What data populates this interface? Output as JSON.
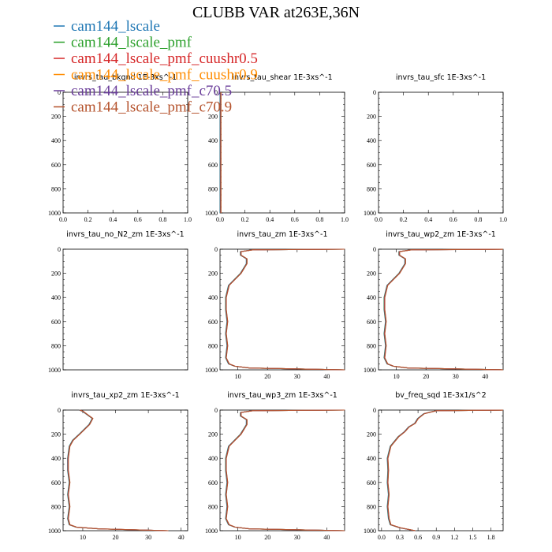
{
  "title": "CLUBB VAR at263E,36N",
  "colors": {
    "cam144_lscale": "#1f77b4",
    "cam144_lscale_pmf": "#2ca02c",
    "cam144_lscale_pmf_cuushr0.5": "#d62728",
    "cam144_lscale_pmf_cuushr0.9": "#ff8c00",
    "cam144_lscale_pmf_c70.5": "#6a3d9a",
    "cam144_lscale_pmf_c70.9": "#b5532d"
  },
  "legend": [
    "cam144_lscale",
    "cam144_lscale_pmf",
    "cam144_lscale_pmf_cuushr0.5",
    "cam144_lscale_pmf_cuushr0.9",
    "cam144_lscale_pmf_c70.5",
    "cam144_lscale_pmf_c70.9"
  ],
  "chart_data": [
    {
      "type": "line",
      "title": "invrs_tau_bkgnd 1E-3xs^-1",
      "xlim": [
        0,
        1
      ],
      "ylim": [
        1000,
        0
      ],
      "xticks": [
        "0.0",
        "0.2",
        "0.4",
        "0.6",
        "0.8",
        "1.0"
      ],
      "yticks": [
        "0",
        "200",
        "400",
        "600",
        "800",
        "1000"
      ],
      "profile": null
    },
    {
      "type": "line",
      "title": "invrs_tau_shear 1E-3xs^-1",
      "xlim": [
        0,
        1
      ],
      "ylim": [
        1000,
        0
      ],
      "xticks": [
        "0.0",
        "0.2",
        "0.4",
        "0.6",
        "0.8",
        "1.0"
      ],
      "yticks": [
        "0",
        "200",
        "400",
        "600",
        "800",
        "1000"
      ],
      "profile": {
        "x": [
          0.005,
          0.005
        ],
        "y": [
          0,
          1000
        ]
      }
    },
    {
      "type": "line",
      "title": "invrs_tau_sfc 1E-3xs^-1",
      "xlim": [
        0,
        1
      ],
      "ylim": [
        1000,
        0
      ],
      "xticks": [
        "0.0",
        "0.2",
        "0.4",
        "0.6",
        "0.8",
        "1.0"
      ],
      "yticks": [
        "0",
        "200",
        "400",
        "600",
        "800",
        "1000"
      ],
      "profile": null
    },
    {
      "type": "line",
      "title": "invrs_tau_no_N2_zm 1E-3xs^-1",
      "xlim": [
        0,
        1
      ],
      "ylim": [
        1000,
        0
      ],
      "xticks": [],
      "yticks": [
        "0",
        "200",
        "400",
        "600",
        "800",
        "1000"
      ],
      "profile": null
    },
    {
      "type": "line",
      "title": "invrs_tau_zm 1E-3xs^-1",
      "xlim": [
        4,
        46
      ],
      "ylim": [
        1000,
        0
      ],
      "xticks": [
        "10",
        "20",
        "30",
        "40"
      ],
      "yticks": [
        "0",
        "200",
        "400",
        "600",
        "800",
        "1000"
      ],
      "profile": {
        "x": [
          46,
          15,
          11,
          11,
          13,
          13,
          11,
          9,
          7,
          6,
          6,
          6.5,
          6,
          6.5,
          6,
          7,
          9,
          14,
          46
        ],
        "y": [
          0,
          5,
          20,
          50,
          80,
          120,
          200,
          250,
          300,
          400,
          500,
          600,
          700,
          800,
          900,
          950,
          970,
          985,
          1000
        ]
      }
    },
    {
      "type": "line",
      "title": "invrs_tau_wp2_zm 1E-3xs^-1",
      "xlim": [
        4,
        46
      ],
      "ylim": [
        1000,
        0
      ],
      "xticks": [
        "10",
        "20",
        "30",
        "40"
      ],
      "yticks": [
        "0",
        "200",
        "400",
        "600",
        "800",
        "1000"
      ],
      "profile": {
        "x": [
          46,
          15,
          11,
          11,
          13,
          13,
          11,
          9,
          7,
          6,
          6,
          6.5,
          6,
          6.5,
          6,
          7,
          9,
          14,
          46
        ],
        "y": [
          0,
          5,
          20,
          50,
          80,
          120,
          200,
          250,
          300,
          400,
          500,
          600,
          700,
          800,
          900,
          950,
          970,
          985,
          1000
        ]
      }
    },
    {
      "type": "line",
      "title": "invrs_tau_xp2_zm 1E-3xs^-1",
      "xlim": [
        4,
        42
      ],
      "ylim": [
        1000,
        0
      ],
      "xticks": [
        "10",
        "20",
        "30",
        "40"
      ],
      "yticks": [
        "0",
        "200",
        "400",
        "600",
        "800",
        "1000"
      ],
      "profile": {
        "x": [
          9,
          10,
          11,
          13,
          12,
          9,
          7,
          6,
          5.5,
          5.5,
          6,
          5.5,
          6,
          5.5,
          6,
          8,
          15,
          36
        ],
        "y": [
          0,
          10,
          30,
          70,
          120,
          200,
          250,
          300,
          400,
          500,
          600,
          700,
          800,
          900,
          950,
          970,
          985,
          1000
        ]
      }
    },
    {
      "type": "line",
      "title": "invrs_tau_wp3_zm 1E-3xs^-1",
      "xlim": [
        4,
        46
      ],
      "ylim": [
        1000,
        0
      ],
      "xticks": [
        "10",
        "20",
        "30",
        "40"
      ],
      "yticks": [
        "0",
        "200",
        "400",
        "600",
        "800",
        "1000"
      ],
      "profile": {
        "x": [
          46,
          15,
          11,
          11,
          13,
          13,
          11,
          9,
          7,
          6,
          6,
          6.5,
          6,
          6.5,
          6,
          7,
          9,
          14,
          46
        ],
        "y": [
          0,
          5,
          20,
          50,
          80,
          120,
          200,
          250,
          300,
          400,
          500,
          600,
          700,
          800,
          900,
          950,
          970,
          985,
          1000
        ]
      }
    },
    {
      "type": "line",
      "title": "bv_freq_sqd 1E-3x1/s^2",
      "xlim": [
        -0.05,
        2.0
      ],
      "ylim": [
        1000,
        0
      ],
      "xticks": [
        "0.0",
        "0.3",
        "0.6",
        "0.9",
        "1.2",
        "1.5",
        "1.8"
      ],
      "yticks": [
        "0",
        "200",
        "400",
        "600",
        "800",
        "1000"
      ],
      "profile": {
        "x": [
          2.0,
          0.9,
          0.7,
          0.6,
          0.55,
          0.45,
          0.38,
          0.28,
          0.15,
          0.1,
          0.11,
          0.1,
          0.12,
          0.1,
          0.12,
          0.15,
          0.3,
          0.55
        ],
        "y": [
          0,
          5,
          30,
          70,
          110,
          140,
          180,
          220,
          300,
          400,
          500,
          600,
          700,
          800,
          900,
          950,
          975,
          1000
        ]
      }
    }
  ]
}
